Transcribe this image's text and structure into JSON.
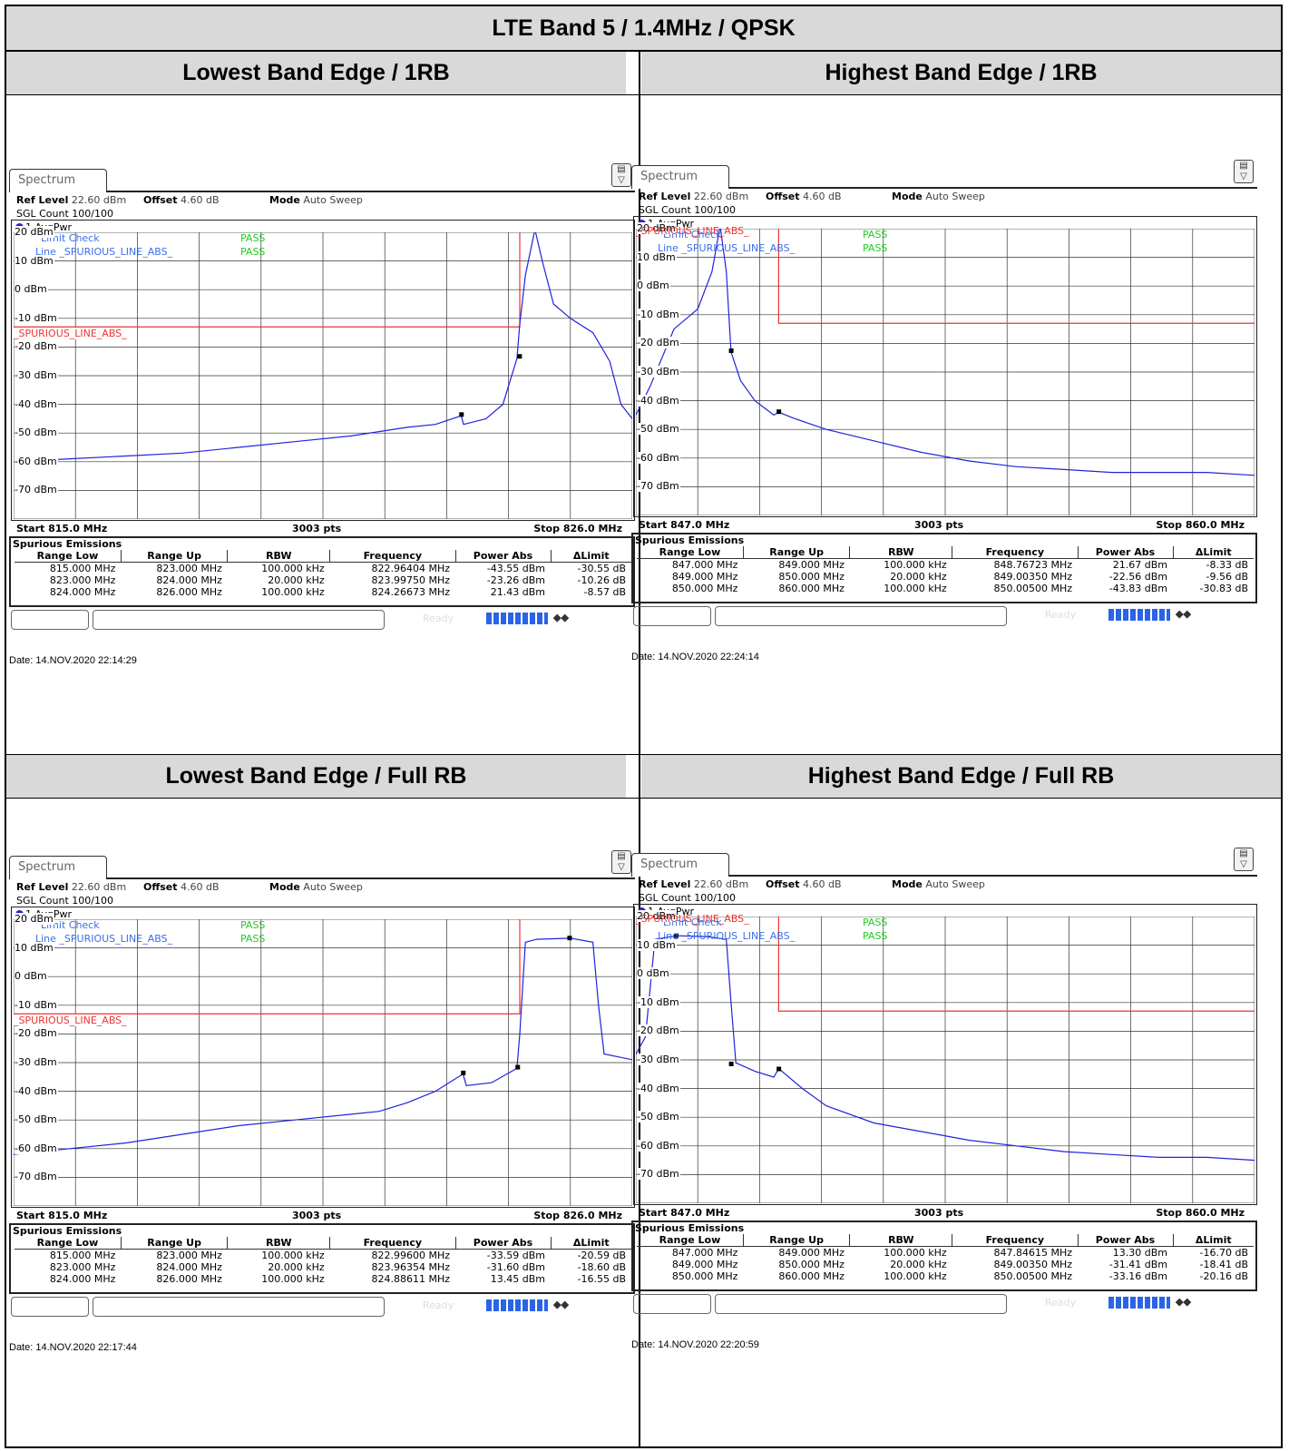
{
  "title": "LTE Band 5 / 1.4MHz / QPSK",
  "colors": {
    "header_bg": "#d9d9d9",
    "trace": "#2222dd",
    "limit": "#ee3333",
    "pass": "#22cc22",
    "legend_text": "#3b6fe8"
  },
  "common": {
    "tab": "Spectrum",
    "ref_level_label": "Ref Level",
    "ref_level_value": "22.60 dBm",
    "offset_label": "Offset",
    "offset_value": "4.60 dB",
    "mode_label": "Mode",
    "mode_value": "Auto Sweep",
    "sgl": "SGL Count 100/100",
    "trace_label": "1 AvgPwr",
    "limit_check": "Limit Check",
    "limit_pass": "PASS",
    "line_text": "Line _SPURIOUS_LINE_ABS_",
    "line_pass": "PASS",
    "limit_label": "_SPURIOUS_LINE_ABS_",
    "points": "3003 pts",
    "spur_title": "Spurious Emissions",
    "columns": [
      "Range Low",
      "Range Up",
      "RBW",
      "Frequency",
      "Power Abs",
      "ΔLimit"
    ],
    "ready": "Ready"
  },
  "panels": [
    {
      "header": "Lowest Band Edge / 1RB",
      "start": "Start 815.0 MHz",
      "stop": "Stop 826.0 MHz",
      "date": "Date: 14.NOV.2020  22:14:29",
      "rows": [
        [
          "815.000 MHz",
          "823.000 MHz",
          "100.000 kHz",
          "822.96404 MHz",
          "-43.55 dBm",
          "-30.55 dB"
        ],
        [
          "823.000 MHz",
          "824.000 MHz",
          "20.000 kHz",
          "823.99750 MHz",
          "-23.26 dBm",
          "-10.26 dB"
        ],
        [
          "824.000 MHz",
          "826.000 MHz",
          "100.000 kHz",
          "824.26673 MHz",
          "21.43 dBm",
          "-8.57 dB"
        ]
      ]
    },
    {
      "header": "Highest Band Edge / 1RB",
      "start": "Start 847.0 MHz",
      "stop": "Stop 860.0 MHz",
      "date": "Date: 14.NOV.2020  22:24:14",
      "rows": [
        [
          "847.000 MHz",
          "849.000 MHz",
          "100.000 kHz",
          "848.76723 MHz",
          "21.67 dBm",
          "-8.33 dB"
        ],
        [
          "849.000 MHz",
          "850.000 MHz",
          "20.000 kHz",
          "849.00350 MHz",
          "-22.56 dBm",
          "-9.56 dB"
        ],
        [
          "850.000 MHz",
          "860.000 MHz",
          "100.000 kHz",
          "850.00500 MHz",
          "-43.83 dBm",
          "-30.83 dB"
        ]
      ]
    },
    {
      "header": "Lowest Band Edge / Full RB",
      "start": "Start 815.0 MHz",
      "stop": "Stop 826.0 MHz",
      "date": "Date: 14.NOV.2020  22:17:44",
      "rows": [
        [
          "815.000 MHz",
          "823.000 MHz",
          "100.000 kHz",
          "822.99600 MHz",
          "-33.59 dBm",
          "-20.59 dB"
        ],
        [
          "823.000 MHz",
          "824.000 MHz",
          "20.000 kHz",
          "823.96354 MHz",
          "-31.60 dBm",
          "-18.60 dB"
        ],
        [
          "824.000 MHz",
          "826.000 MHz",
          "100.000 kHz",
          "824.88611 MHz",
          "13.45 dBm",
          "-16.55 dB"
        ]
      ]
    },
    {
      "header": "Highest Band Edge / Full RB",
      "start": "Start 847.0 MHz",
      "stop": "Stop 860.0 MHz",
      "date": "Date: 14.NOV.2020  22:20:59",
      "rows": [
        [
          "847.000 MHz",
          "849.000 MHz",
          "100.000 kHz",
          "847.84615 MHz",
          "13.30 dBm",
          "-16.70 dB"
        ],
        [
          "849.000 MHz",
          "850.000 MHz",
          "20.000 kHz",
          "849.00350 MHz",
          "-31.41 dBm",
          "-18.41 dB"
        ],
        [
          "850.000 MHz",
          "860.000 MHz",
          "100.000 kHz",
          "850.00500 MHz",
          "-33.16 dBm",
          "-20.16 dB"
        ]
      ]
    }
  ],
  "chart_data": [
    {
      "type": "line",
      "title": "Lowest Band Edge / 1RB",
      "xlim": [
        815.0,
        826.0
      ],
      "ylim": [
        -80,
        20
      ],
      "yunit": "dBm",
      "yticks": [
        "20 dBm",
        "10 dBm",
        "0 dBm",
        "-10 dBm",
        "-20 dBm",
        "-30 dBm",
        "-40 dBm",
        "-50 dBm",
        "-60 dBm",
        "-70 dBm"
      ],
      "grid": true,
      "limit_line": {
        "name": "_SPURIOUS_LINE_ABS_",
        "segments": [
          [
            815.0,
            823.0,
            -13.0
          ],
          [
            824.0,
            826.0,
            21.0
          ]
        ]
      },
      "series": [
        {
          "x": [
            815.0,
            816.0,
            817.0,
            818.0,
            819.0,
            820.0,
            821.0,
            822.0,
            822.5,
            822.96,
            823.0,
            823.4,
            823.7,
            823.95,
            824.0,
            824.1,
            824.27,
            824.4,
            824.6,
            824.9,
            825.3,
            825.6,
            825.8,
            826.0
          ],
          "y": [
            -60,
            -59,
            -58,
            -57,
            -55,
            -53,
            -51,
            -48,
            -47,
            -44,
            -47,
            -45,
            -40,
            -24,
            -12,
            5,
            21,
            10,
            -5,
            -10,
            -15,
            -25,
            -40,
            -45
          ]
        }
      ],
      "markers": [
        {
          "x": 822.96404,
          "y": -43.55
        },
        {
          "x": 823.9975,
          "y": -23.26
        },
        {
          "x": 824.26673,
          "y": 21.43
        }
      ]
    },
    {
      "type": "line",
      "title": "Highest Band Edge / 1RB",
      "xlim": [
        847.0,
        860.0
      ],
      "ylim": [
        -80,
        20
      ],
      "yunit": "dBm",
      "yticks": [
        "20 dBm",
        "10 dBm",
        "0 dBm",
        "-10 dBm",
        "-20 dBm",
        "-30 dBm",
        "-40 dBm",
        "-50 dBm",
        "-60 dBm",
        "-70 dBm"
      ],
      "grid": true,
      "limit_line": {
        "name": "_SPURIOUS_LINE_ABS_",
        "segments": [
          [
            847.0,
            849.0,
            21.0
          ],
          [
            850.0,
            860.0,
            -13.0
          ]
        ]
      },
      "series": [
        {
          "x": [
            847.0,
            847.3,
            847.8,
            848.3,
            848.6,
            848.77,
            848.9,
            849.0,
            849.2,
            849.5,
            849.9,
            850.0,
            850.3,
            851.0,
            852.0,
            853.0,
            854.0,
            855.0,
            856.0,
            857.0,
            858.0,
            859.0,
            860.0
          ],
          "y": [
            -45,
            -35,
            -15,
            -8,
            5,
            21,
            5,
            -23,
            -33,
            -40,
            -45,
            -44,
            -46,
            -50,
            -54,
            -58,
            -61,
            -63,
            -64,
            -65,
            -65,
            -65,
            -66
          ]
        }
      ],
      "markers": [
        {
          "x": 848.76723,
          "y": 21.67
        },
        {
          "x": 849.0035,
          "y": -22.56
        },
        {
          "x": 850.005,
          "y": -43.83
        }
      ]
    },
    {
      "type": "line",
      "title": "Lowest Band Edge / Full RB",
      "xlim": [
        815.0,
        826.0
      ],
      "ylim": [
        -80,
        20
      ],
      "yunit": "dBm",
      "yticks": [
        "20 dBm",
        "10 dBm",
        "0 dBm",
        "-10 dBm",
        "-20 dBm",
        "-30 dBm",
        "-40 dBm",
        "-50 dBm",
        "-60 dBm",
        "-70 dBm"
      ],
      "grid": true,
      "limit_line": {
        "name": "_SPURIOUS_LINE_ABS_",
        "segments": [
          [
            815.0,
            823.0,
            -13.0
          ],
          [
            824.0,
            826.0,
            21.0
          ]
        ]
      },
      "series": [
        {
          "x": [
            815.0,
            816.0,
            817.0,
            818.0,
            819.0,
            820.0,
            821.0,
            821.5,
            822.0,
            822.5,
            822.99,
            823.05,
            823.5,
            823.95,
            824.0,
            824.1,
            824.3,
            824.9,
            825.3,
            825.4,
            825.5,
            826.0
          ],
          "y": [
            -62,
            -60,
            -58,
            -55,
            -52,
            -50,
            -48,
            -47,
            -44,
            -40,
            -34,
            -38,
            -37,
            -32,
            -20,
            12,
            13,
            13.4,
            12,
            -10,
            -27,
            -29
          ]
        }
      ],
      "markers": [
        {
          "x": 822.996,
          "y": -33.59
        },
        {
          "x": 823.96354,
          "y": -31.6
        },
        {
          "x": 824.88611,
          "y": 13.45
        }
      ]
    },
    {
      "type": "line",
      "title": "Highest Band Edge / Full RB",
      "xlim": [
        847.0,
        860.0
      ],
      "ylim": [
        -80,
        20
      ],
      "yunit": "dBm",
      "yticks": [
        "20 dBm",
        "10 dBm",
        "0 dBm",
        "-10 dBm",
        "-20 dBm",
        "-30 dBm",
        "-40 dBm",
        "-50 dBm",
        "-60 dBm",
        "-70 dBm"
      ],
      "grid": true,
      "limit_line": {
        "name": "_SPURIOUS_LINE_ABS_",
        "segments": [
          [
            847.0,
            849.0,
            21.0
          ],
          [
            850.0,
            860.0,
            -13.0
          ]
        ]
      },
      "series": [
        {
          "x": [
            847.0,
            847.2,
            847.4,
            847.85,
            848.5,
            848.9,
            849.0,
            849.1,
            849.5,
            849.9,
            850.0,
            850.5,
            851.0,
            852.0,
            853.0,
            854.0,
            855.0,
            856.0,
            857.0,
            858.0,
            859.0,
            860.0
          ],
          "y": [
            -28,
            -22,
            12,
            13.3,
            13,
            12,
            -10,
            -31,
            -34,
            -36,
            -33,
            -40,
            -46,
            -52,
            -55,
            -58,
            -60,
            -62,
            -63,
            -64,
            -64,
            -65
          ]
        }
      ],
      "markers": [
        {
          "x": 847.84615,
          "y": 13.3
        },
        {
          "x": 849.0035,
          "y": -31.41
        },
        {
          "x": 850.005,
          "y": -33.16
        }
      ]
    }
  ]
}
